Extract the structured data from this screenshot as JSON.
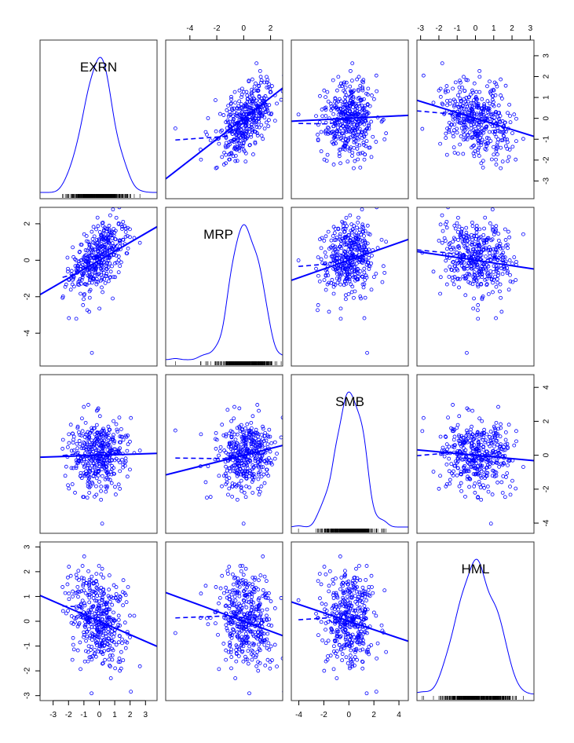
{
  "chart_data": {
    "type": "scatter-matrix",
    "title": "",
    "variables": [
      "EXRN",
      "MRP",
      "SMB",
      "HML"
    ],
    "ranges": {
      "EXRN": [
        -3.85,
        3.75
      ],
      "MRP": [
        -5.8,
        2.9
      ],
      "SMB": [
        -4.6,
        4.75
      ],
      "HML": [
        -3.2,
        3.2
      ]
    },
    "ticks": {
      "EXRN": [
        -3,
        -2,
        -1,
        0,
        1,
        2,
        3
      ],
      "MRP": [
        -4,
        -2,
        0,
        2
      ],
      "SMB": [
        -4,
        -2,
        0,
        2,
        4
      ],
      "HML": [
        -3,
        -2,
        -1,
        0,
        1,
        2,
        3
      ]
    },
    "tick_labels": {
      "EXRN": [
        "-3",
        "-2",
        "-1",
        "0",
        "1",
        "2",
        "3"
      ],
      "MRP": [
        "-4",
        "-2",
        "0",
        "2"
      ],
      "SMB": [
        "-4",
        "-2",
        "0",
        "2",
        "4"
      ],
      "HML": [
        "-3",
        "-2",
        "-1",
        "0",
        "1",
        "2",
        "3"
      ]
    },
    "diagonal": "density with rug",
    "n_points_approx": 400,
    "correlations": {
      "EXRN-MRP": 0.5,
      "EXRN-SMB": 0.03,
      "EXRN-HML": -0.26,
      "MRP-SMB": 0.17,
      "MRP-HML": -0.16,
      "SMB-HML": -0.12
    },
    "linear_fits": [
      {
        "y": "EXRN",
        "x": "MRP",
        "slope": 0.5,
        "intercept": 0.0
      },
      {
        "y": "EXRN",
        "x": "SMB",
        "slope": 0.03,
        "intercept": 0.0
      },
      {
        "y": "EXRN",
        "x": "HML",
        "slope": -0.27,
        "intercept": 0.0
      },
      {
        "y": "MRP",
        "x": "EXRN",
        "slope": 0.49,
        "intercept": 0.0
      },
      {
        "y": "MRP",
        "x": "SMB",
        "slope": 0.24,
        "intercept": 0.0
      },
      {
        "y": "MRP",
        "x": "HML",
        "slope": -0.15,
        "intercept": 0.0
      },
      {
        "y": "SMB",
        "x": "EXRN",
        "slope": 0.03,
        "intercept": 0.0
      },
      {
        "y": "SMB",
        "x": "MRP",
        "slope": 0.2,
        "intercept": 0.0
      },
      {
        "y": "SMB",
        "x": "HML",
        "slope": -0.1,
        "intercept": 0.0
      },
      {
        "y": "HML",
        "x": "EXRN",
        "slope": -0.27,
        "intercept": 0.0
      },
      {
        "y": "HML",
        "x": "MRP",
        "slope": -0.2,
        "intercept": 0.0
      },
      {
        "y": "HML",
        "x": "SMB",
        "slope": -0.17,
        "intercept": 0.0
      }
    ],
    "smoother": "dashed",
    "grid": false,
    "legend": "none",
    "colors": {
      "points": "#0000FF",
      "lines": "#0000FF",
      "rug": "#000000",
      "frame": "#333333"
    }
  }
}
